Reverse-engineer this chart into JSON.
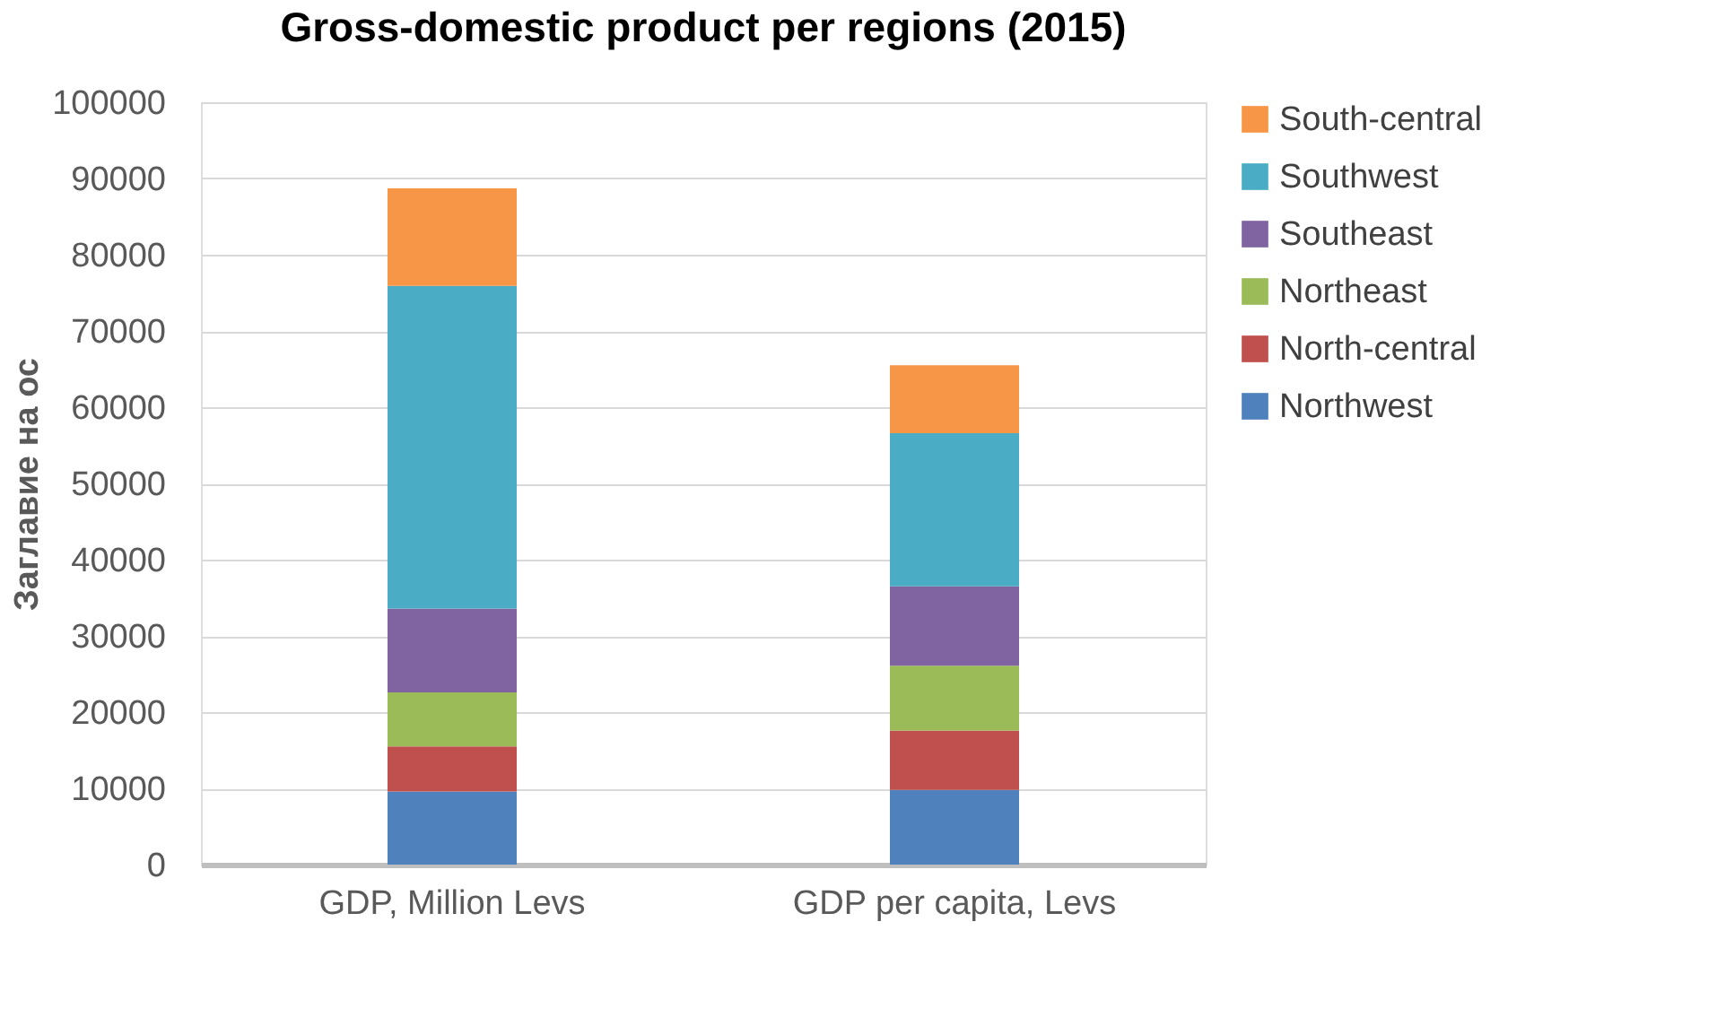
{
  "chart_data": {
    "type": "bar",
    "stacked": true,
    "title": "Gross-domestic product per regions (2015)",
    "ylabel": "Заглавие на ос",
    "categories": [
      "GDP, Million Levs",
      "GDP per capita, Levs"
    ],
    "series": [
      {
        "name": "Northwest",
        "color": "#4f81bd",
        "values": [
          9600,
          9800
        ]
      },
      {
        "name": "North-central",
        "color": "#c0504d",
        "values": [
          5900,
          7800
        ]
      },
      {
        "name": "Northeast",
        "color": "#9bbb59",
        "values": [
          7100,
          8500
        ]
      },
      {
        "name": "Southeast",
        "color": "#8064a2",
        "values": [
          11000,
          10400
        ]
      },
      {
        "name": "Southwest",
        "color": "#4bacc6",
        "values": [
          42300,
          20100
        ]
      },
      {
        "name": "South-central",
        "color": "#f79646",
        "values": [
          12800,
          8900
        ]
      }
    ],
    "ylim": [
      0,
      100000
    ],
    "yticks": [
      0,
      10000,
      20000,
      30000,
      40000,
      50000,
      60000,
      70000,
      80000,
      90000,
      100000
    ],
    "grid": "y",
    "legend": "right"
  }
}
